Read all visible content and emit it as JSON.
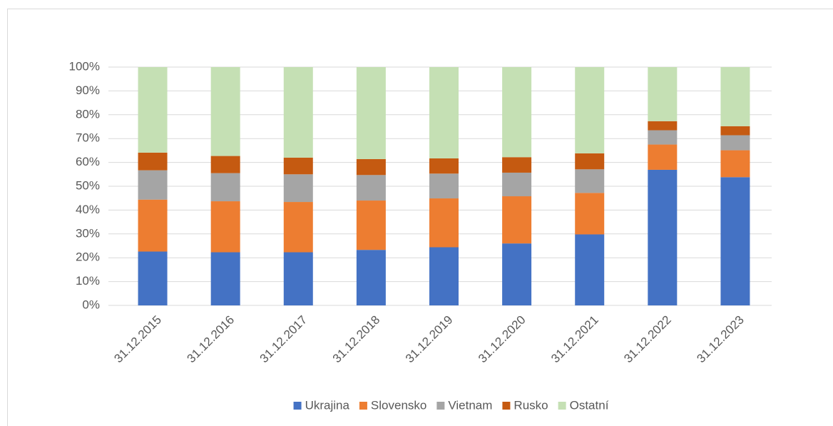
{
  "chart_data": {
    "type": "stacked_bar_100",
    "categories": [
      "31.12.2015",
      "31.12.2016",
      "31.12.2017",
      "31.12.2018",
      "31.12.2019",
      "31.12.2020",
      "31.12.2021",
      "31.12.2022",
      "31.12.2023"
    ],
    "series": [
      {
        "name": "Ukrajina",
        "color": "#4472c4",
        "values": [
          22.6,
          22.3,
          22.3,
          23.3,
          24.4,
          26.0,
          29.8,
          56.9,
          53.8
        ]
      },
      {
        "name": "Slovensko",
        "color": "#ed7d31",
        "values": [
          21.8,
          21.4,
          21.1,
          20.7,
          20.5,
          19.8,
          17.4,
          10.6,
          11.3
        ]
      },
      {
        "name": "Vietnam",
        "color": "#a5a5a5",
        "values": [
          12.3,
          11.8,
          11.6,
          10.7,
          10.4,
          9.9,
          9.9,
          6.0,
          6.3
        ]
      },
      {
        "name": "Rusko",
        "color": "#c55a11",
        "values": [
          7.4,
          7.2,
          7.0,
          6.7,
          6.4,
          6.5,
          6.7,
          3.8,
          3.8
        ]
      },
      {
        "name": "Ostatní",
        "color": "#c5e0b4",
        "values": [
          35.9,
          37.3,
          38.0,
          38.6,
          38.3,
          37.8,
          36.2,
          22.7,
          24.8
        ]
      }
    ],
    "ylim": [
      0,
      100
    ],
    "yticks": [
      {
        "value": 0,
        "label": "0%"
      },
      {
        "value": 10,
        "label": "10%"
      },
      {
        "value": 20,
        "label": "20%"
      },
      {
        "value": 30,
        "label": "30%"
      },
      {
        "value": 40,
        "label": "40%"
      },
      {
        "value": 50,
        "label": "50%"
      },
      {
        "value": 60,
        "label": "60%"
      },
      {
        "value": 70,
        "label": "70%"
      },
      {
        "value": 80,
        "label": "80%"
      },
      {
        "value": 90,
        "label": "90%"
      },
      {
        "value": 100,
        "label": "100%"
      }
    ],
    "grid": true,
    "legend": "bottom"
  }
}
